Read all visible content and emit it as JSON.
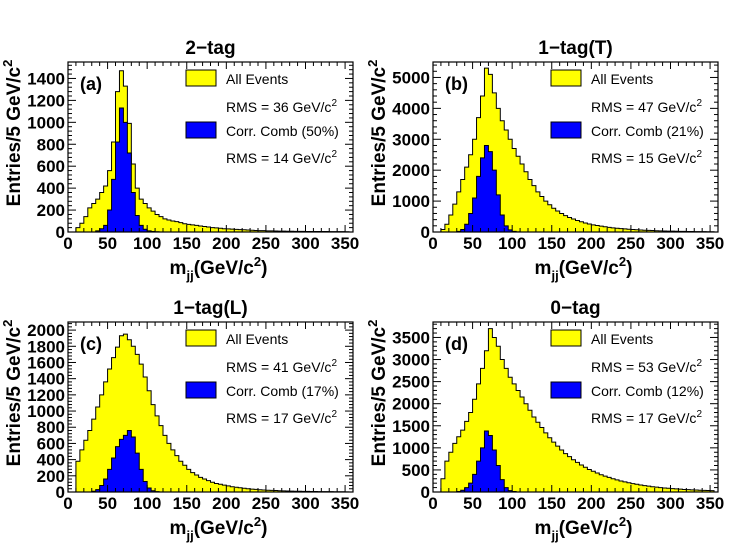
{
  "colors": {
    "all_fill": "#ffff00",
    "corr_fill": "#0000ff",
    "outline": "#000000"
  },
  "legend_labels": {
    "all": "All Events",
    "corr": "Corr. Comb"
  },
  "axis_text": {
    "ylabel": "Entries/5 GeV/c",
    "ylabel_sup": "2",
    "xlabel_main": "m",
    "xlabel_sub": "jj",
    "xlabel_unit": "(GeV/c",
    "xlabel_sup": "2",
    "xlabel_close": ")"
  },
  "chart_data": [
    {
      "type": "histogram",
      "title": "2−tag",
      "panel_label": "(a)",
      "x_ticks": [
        "0",
        "50",
        "100",
        "150",
        "200",
        "250",
        "300",
        "350"
      ],
      "y_ticks": [
        "0",
        "200",
        "400",
        "600",
        "800",
        "1000",
        "1200",
        "1400"
      ],
      "xlim": [
        0,
        360
      ],
      "ylim": [
        0,
        1550
      ],
      "bin_width": 5,
      "legend": {
        "all_rms": "RMS = 36 GeV/c",
        "all_rms_sup": "2",
        "corr_pct": "(50%)",
        "corr_rms": "RMS = 14 GeV/c",
        "corr_rms_sup": "2"
      },
      "series": [
        {
          "name": "All Events",
          "values": [
            0,
            0,
            40,
            80,
            140,
            220,
            260,
            300,
            360,
            420,
            560,
            820,
            1280,
            1470,
            1330,
            990,
            620,
            400,
            300,
            260,
            220,
            190,
            160,
            140,
            120,
            110,
            100,
            95,
            85,
            75,
            70,
            65,
            60,
            55,
            50,
            45,
            40,
            38,
            34,
            30,
            28,
            26,
            24,
            22,
            20,
            18,
            16,
            14,
            12,
            12,
            10,
            10,
            9,
            8,
            8,
            7,
            7,
            6,
            6,
            6,
            5,
            5,
            5,
            4,
            4,
            4,
            3,
            3,
            3,
            3,
            2
          ]
        },
        {
          "name": "Corr. Comb (50%)",
          "values": [
            0,
            0,
            0,
            0,
            0,
            0,
            0,
            10,
            30,
            60,
            200,
            480,
            820,
            1130,
            1000,
            720,
            360,
            150,
            60,
            25,
            10,
            5,
            2,
            0
          ]
        }
      ]
    },
    {
      "type": "histogram",
      "title": "1−tag(T)",
      "panel_label": "(b)",
      "x_ticks": [
        "0",
        "50",
        "100",
        "150",
        "200",
        "250",
        "300",
        "350"
      ],
      "y_ticks": [
        "0",
        "1000",
        "2000",
        "3000",
        "4000",
        "5000"
      ],
      "xlim": [
        0,
        360
      ],
      "ylim": [
        0,
        5500
      ],
      "bin_width": 5,
      "legend": {
        "all_rms": "RMS = 47 GeV/c",
        "all_rms_sup": "2",
        "corr_pct": "(21%)",
        "corr_rms": "RMS = 15 GeV/c",
        "corr_rms_sup": "2"
      },
      "series": [
        {
          "name": "All Events",
          "values": [
            0,
            0,
            80,
            250,
            550,
            900,
            1300,
            1700,
            2100,
            2500,
            3000,
            3700,
            4400,
            5300,
            5100,
            4500,
            4000,
            3600,
            3300,
            3000,
            2700,
            2450,
            2200,
            1950,
            1700,
            1500,
            1300,
            1150,
            1000,
            880,
            770,
            680,
            600,
            530,
            470,
            420,
            370,
            330,
            290,
            260,
            230,
            210,
            190,
            170,
            150,
            135,
            120,
            110,
            100,
            90,
            80,
            72,
            65,
            58,
            52,
            47,
            42,
            38,
            34,
            30,
            27,
            24,
            22,
            20,
            18,
            16,
            14,
            12,
            11,
            10,
            9
          ]
        },
        {
          "name": "Corr. Comb (21%)",
          "values": [
            0,
            0,
            0,
            0,
            0,
            0,
            20,
            80,
            250,
            600,
            1100,
            1800,
            2400,
            2800,
            2600,
            2000,
            1200,
            550,
            200,
            70,
            20,
            5,
            0
          ]
        }
      ]
    },
    {
      "type": "histogram",
      "title": "1−tag(L)",
      "panel_label": "(c)",
      "x_ticks": [
        "0",
        "50",
        "100",
        "150",
        "200",
        "250",
        "300",
        "350"
      ],
      "y_ticks": [
        "0",
        "200",
        "400",
        "600",
        "800",
        "1000",
        "1200",
        "1400",
        "1600",
        "1800",
        "2000"
      ],
      "xlim": [
        0,
        360
      ],
      "ylim": [
        0,
        2100
      ],
      "bin_width": 5,
      "legend": {
        "all_rms": "RMS = 41 GeV/c",
        "all_rms_sup": "2",
        "corr_pct": "(17%)",
        "corr_rms": "RMS = 17 GeV/c",
        "corr_rms_sup": "2"
      },
      "series": [
        {
          "name": "All Events",
          "values": [
            0,
            0,
            380,
            520,
            640,
            760,
            900,
            1050,
            1200,
            1360,
            1520,
            1660,
            1790,
            1930,
            1950,
            1880,
            1800,
            1700,
            1580,
            1420,
            1250,
            1080,
            940,
            820,
            700,
            600,
            520,
            450,
            380,
            330,
            280,
            240,
            210,
            180,
            160,
            140,
            120,
            105,
            95,
            85,
            75,
            65,
            58,
            52,
            46,
            40,
            36,
            32,
            28,
            25,
            22,
            20,
            18,
            16,
            14,
            12,
            11,
            10,
            9,
            8,
            7,
            6,
            6,
            5,
            5,
            4,
            4,
            3,
            3,
            3,
            2
          ]
        },
        {
          "name": "Corr. Comb (17%)",
          "values": [
            0,
            0,
            0,
            0,
            0,
            0,
            10,
            30,
            80,
            160,
            280,
            420,
            560,
            650,
            700,
            760,
            680,
            480,
            280,
            130,
            50,
            15,
            5,
            0
          ]
        }
      ]
    },
    {
      "type": "histogram",
      "title": "0−tag",
      "panel_label": "(d)",
      "x_ticks": [
        "0",
        "50",
        "100",
        "150",
        "200",
        "250",
        "300",
        "350"
      ],
      "y_ticks": [
        "0",
        "500",
        "1000",
        "1500",
        "2000",
        "2500",
        "3000",
        "3500"
      ],
      "xlim": [
        0,
        360
      ],
      "ylim": [
        0,
        3850
      ],
      "bin_width": 5,
      "legend": {
        "all_rms": "RMS = 53 GeV/c",
        "all_rms_sup": "2",
        "corr_pct": "(12%)",
        "corr_rms": "RMS = 17 GeV/c",
        "corr_rms_sup": "2"
      },
      "series": [
        {
          "name": "All Events",
          "values": [
            0,
            0,
            300,
            700,
            900,
            1100,
            1250,
            1400,
            1600,
            1800,
            2100,
            2450,
            2800,
            3200,
            3700,
            3500,
            3300,
            3000,
            2800,
            2600,
            2450,
            2300,
            2150,
            2000,
            1850,
            1700,
            1580,
            1460,
            1340,
            1230,
            1130,
            1040,
            950,
            870,
            800,
            730,
            670,
            610,
            560,
            510,
            470,
            430,
            390,
            360,
            330,
            300,
            275,
            250,
            230,
            210,
            190,
            175,
            160,
            145,
            132,
            120,
            110,
            100,
            92,
            84,
            76,
            70,
            64,
            58,
            53,
            48,
            44,
            40,
            36,
            33,
            30
          ]
        },
        {
          "name": "Corr. Comb (12%)",
          "values": [
            0,
            0,
            0,
            0,
            0,
            0,
            10,
            40,
            100,
            200,
            400,
            700,
            1000,
            1380,
            1280,
            950,
            600,
            280,
            100,
            30,
            10,
            0
          ]
        }
      ]
    }
  ]
}
